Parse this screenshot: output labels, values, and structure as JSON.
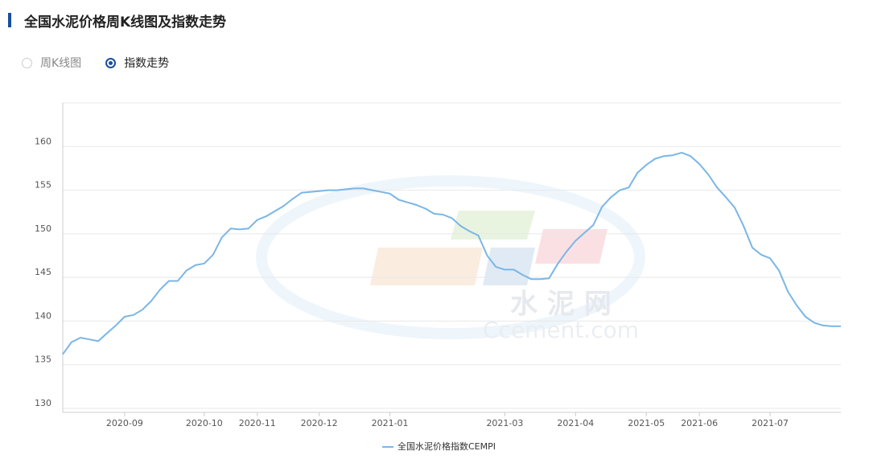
{
  "header": {
    "title": "全国水泥价格周K线图及指数走势"
  },
  "tabs": [
    {
      "label": "周K线图",
      "selected": false
    },
    {
      "label": "指数走势",
      "selected": true
    }
  ],
  "watermark": {
    "name": "水 泥 网",
    "site": "Ccement.com"
  },
  "chart_data": {
    "type": "line",
    "categories": [
      null,
      null,
      null,
      null,
      null,
      null,
      null,
      "2020-09",
      null,
      null,
      null,
      null,
      null,
      null,
      null,
      null,
      "2020-10",
      null,
      null,
      null,
      null,
      null,
      "2020-11",
      null,
      null,
      null,
      null,
      null,
      null,
      "2020-12",
      null,
      null,
      null,
      null,
      null,
      null,
      null,
      "2021-01",
      null,
      null,
      null,
      null,
      null,
      null,
      null,
      null,
      null,
      null,
      null,
      null,
      "2021-03",
      null,
      null,
      null,
      null,
      null,
      null,
      null,
      "2021-04",
      null,
      null,
      null,
      null,
      null,
      null,
      null,
      "2021-05",
      null,
      null,
      null,
      null,
      null,
      "2021-06",
      null,
      null,
      null,
      null,
      null,
      null,
      null,
      "2021-07",
      null,
      null,
      null,
      null,
      null,
      null,
      null,
      null
    ],
    "series": [
      {
        "name": "全国水泥价格指数CEMPI",
        "color": "#7ab6e6",
        "values": [
          136.2,
          137.6,
          138.1,
          137.9,
          137.7,
          138.6,
          139.5,
          140.5,
          140.7,
          141.3,
          142.3,
          143.6,
          144.6,
          144.6,
          145.8,
          146.4,
          146.6,
          147.6,
          149.6,
          150.6,
          150.5,
          150.6,
          151.6,
          152.0,
          152.6,
          153.2,
          154.0,
          154.7,
          154.8,
          154.9,
          155.0,
          155.0,
          155.1,
          155.2,
          155.2,
          155.0,
          154.8,
          154.6,
          153.9,
          153.6,
          153.3,
          152.9,
          152.3,
          152.2,
          151.8,
          150.9,
          150.3,
          149.8,
          147.5,
          146.2,
          145.9,
          145.9,
          145.3,
          144.8,
          144.8,
          144.9,
          146.6,
          148.0,
          149.2,
          150.1,
          151.0,
          153.1,
          154.2,
          155.0,
          155.3,
          157.0,
          157.9,
          158.6,
          158.9,
          159.0,
          159.3,
          158.9,
          158.0,
          156.8,
          155.3,
          154.2,
          153.0,
          150.9,
          148.4,
          147.6,
          147.2,
          145.8,
          143.4,
          141.8,
          140.5,
          139.8,
          139.5,
          139.4,
          139.4
        ]
      }
    ],
    "ylim": [
      130,
      165
    ],
    "yticks": [
      130,
      135,
      140,
      145,
      150,
      155,
      160
    ],
    "grid": true
  }
}
